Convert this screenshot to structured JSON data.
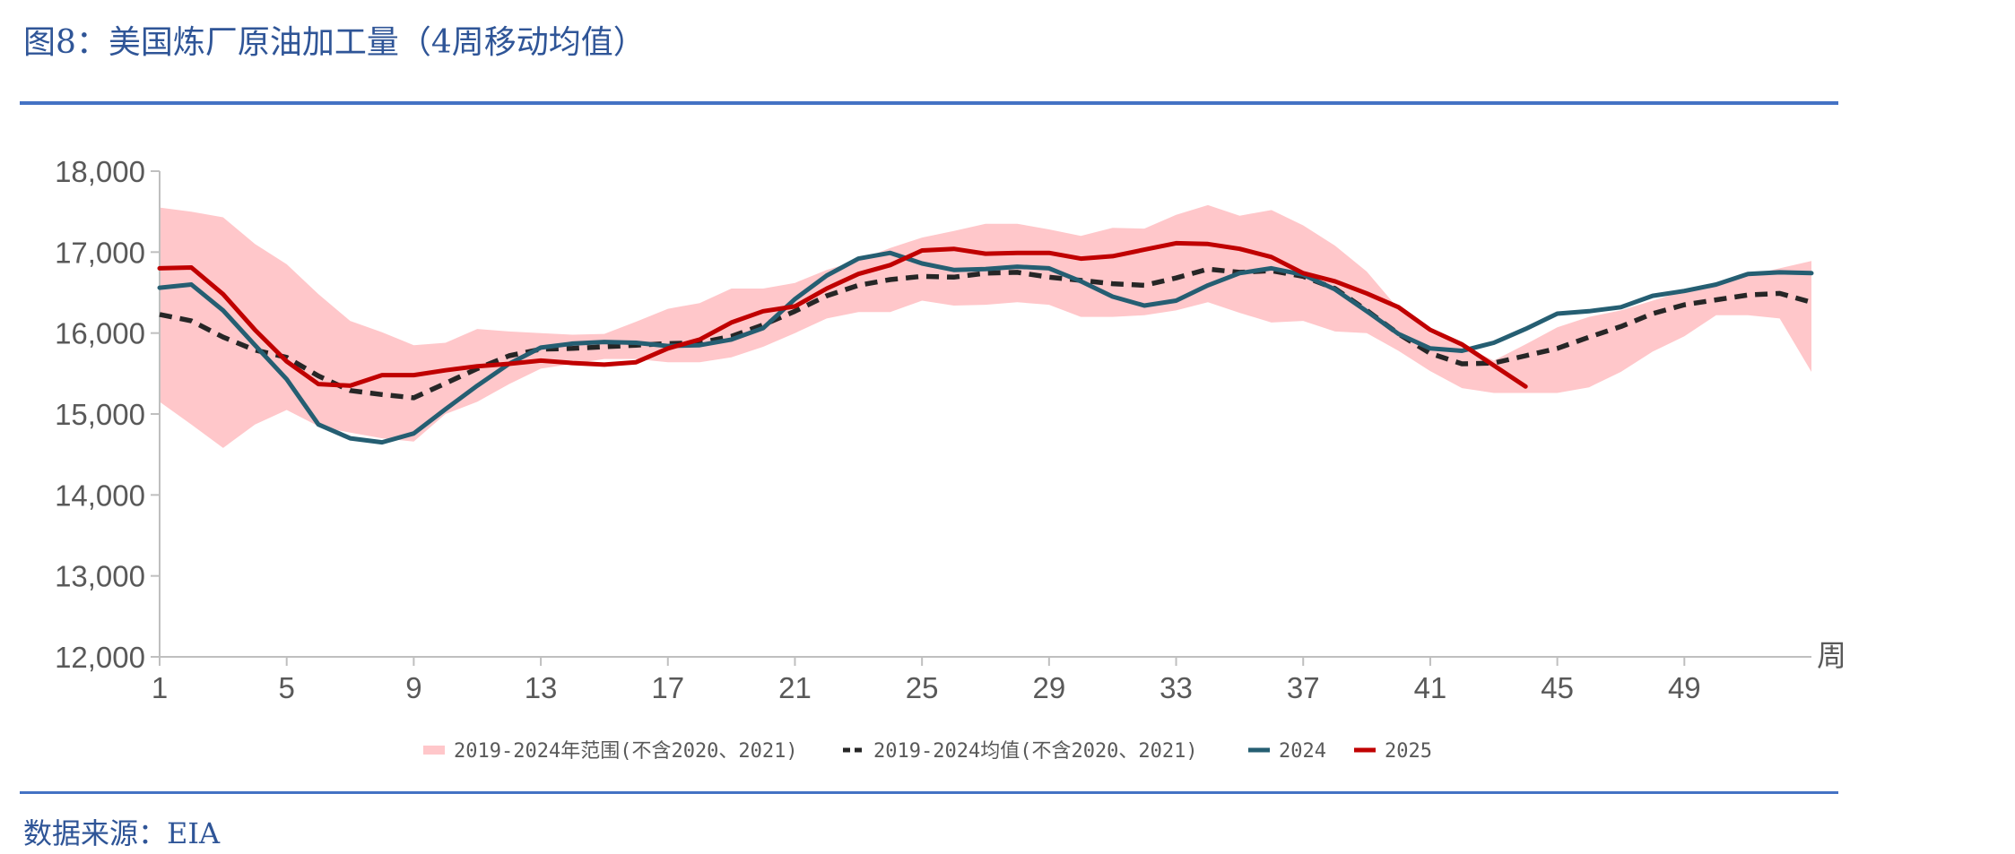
{
  "title": "图8：美国炼厂原油加工量（4周移动均值）",
  "source": "数据来源：EIA",
  "chart_data": {
    "type": "line",
    "xlabel": "周",
    "ylabel": "",
    "ylim": [
      12000,
      18000
    ],
    "xlim": [
      1,
      53
    ],
    "yticks": [
      12000,
      13000,
      14000,
      15000,
      16000,
      17000,
      18000
    ],
    "ytick_labels": [
      "12,000",
      "13,000",
      "14,000",
      "15,000",
      "16,000",
      "17,000",
      "18,000"
    ],
    "xticks": [
      1,
      5,
      9,
      13,
      17,
      21,
      25,
      29,
      33,
      37,
      41,
      45,
      49
    ],
    "xtick_labels": [
      "1",
      "5",
      "9",
      "13",
      "17",
      "21",
      "25",
      "29",
      "33",
      "37",
      "41",
      "45",
      "49"
    ],
    "grid": false,
    "legend_position": "bottom",
    "range": {
      "name": "2019-2024年范围(不含2020、2021)",
      "color": "#FFC7CA",
      "weeks": [
        1,
        2,
        3,
        4,
        5,
        6,
        7,
        8,
        9,
        10,
        11,
        12,
        13,
        14,
        15,
        16,
        17,
        18,
        19,
        20,
        21,
        22,
        23,
        24,
        25,
        26,
        27,
        28,
        29,
        30,
        31,
        32,
        33,
        34,
        35,
        36,
        37,
        38,
        39,
        40,
        41,
        42,
        43,
        44,
        45,
        46,
        47,
        48,
        49,
        50,
        51,
        52,
        53
      ],
      "upper": [
        17550,
        17500,
        17430,
        17100,
        16850,
        16480,
        16150,
        16010,
        15850,
        15880,
        16050,
        16020,
        16000,
        15980,
        15990,
        16140,
        16300,
        16370,
        16550,
        16550,
        16620,
        16780,
        16900,
        17050,
        17180,
        17260,
        17350,
        17350,
        17280,
        17200,
        17300,
        17290,
        17460,
        17580,
        17450,
        17520,
        17330,
        17080,
        16760,
        16300,
        16000,
        15850,
        15660,
        15860,
        16070,
        16200,
        16280,
        16400,
        16520,
        16620,
        16710,
        16800,
        16890
      ],
      "lower": [
        15150,
        14870,
        14580,
        14870,
        15050,
        14850,
        14770,
        14700,
        14660,
        15000,
        15150,
        15370,
        15560,
        15620,
        15680,
        15680,
        15640,
        15640,
        15700,
        15830,
        16000,
        16180,
        16260,
        16260,
        16400,
        16340,
        16350,
        16380,
        16350,
        16200,
        16200,
        16220,
        16280,
        16380,
        16250,
        16130,
        16150,
        16020,
        16000,
        15780,
        15530,
        15320,
        15260,
        15260,
        15260,
        15330,
        15520,
        15770,
        15960,
        16220,
        16220,
        16180,
        15520
      ]
    },
    "series": [
      {
        "name": "2019-2024均值(不含2020、2021)",
        "color": "#262626",
        "dash": true,
        "weeks": [
          1,
          2,
          3,
          4,
          5,
          6,
          7,
          8,
          9,
          10,
          11,
          12,
          13,
          14,
          15,
          16,
          17,
          18,
          19,
          20,
          21,
          22,
          23,
          24,
          25,
          26,
          27,
          28,
          29,
          30,
          31,
          32,
          33,
          34,
          35,
          36,
          37,
          38,
          39,
          40,
          41,
          42,
          43,
          44,
          45,
          46,
          47,
          48,
          49,
          50,
          51,
          52,
          53
        ],
        "values": [
          16230,
          16150,
          15950,
          15790,
          15700,
          15470,
          15290,
          15240,
          15200,
          15380,
          15560,
          15720,
          15800,
          15810,
          15830,
          15850,
          15870,
          15880,
          15960,
          16100,
          16270,
          16460,
          16590,
          16660,
          16700,
          16690,
          16740,
          16750,
          16690,
          16650,
          16610,
          16590,
          16680,
          16790,
          16750,
          16770,
          16700,
          16550,
          16280,
          15990,
          15750,
          15620,
          15630,
          15720,
          15810,
          15950,
          16080,
          16240,
          16350,
          16410,
          16470,
          16490,
          16380
        ]
      },
      {
        "name": "2024",
        "color": "#255E72",
        "dash": false,
        "weeks": [
          1,
          2,
          3,
          4,
          5,
          6,
          7,
          8,
          9,
          10,
          11,
          12,
          13,
          14,
          15,
          16,
          17,
          18,
          19,
          20,
          21,
          22,
          23,
          24,
          25,
          26,
          27,
          28,
          29,
          30,
          31,
          32,
          33,
          34,
          35,
          36,
          37,
          38,
          39,
          40,
          41,
          42,
          43,
          44,
          45,
          46,
          47,
          48,
          49,
          50,
          51,
          52,
          53
        ],
        "values": [
          16560,
          16600,
          16280,
          15850,
          15430,
          14870,
          14700,
          14650,
          14760,
          15060,
          15350,
          15620,
          15820,
          15870,
          15890,
          15880,
          15840,
          15850,
          15920,
          16060,
          16420,
          16710,
          16920,
          16990,
          16860,
          16780,
          16790,
          16820,
          16800,
          16640,
          16450,
          16340,
          16400,
          16590,
          16740,
          16800,
          16720,
          16540,
          16270,
          15990,
          15810,
          15780,
          15880,
          16050,
          16240,
          16270,
          16320,
          16460,
          16520,
          16600,
          16730,
          16750,
          16740
        ]
      },
      {
        "name": "2025",
        "color": "#C00000",
        "dash": false,
        "weeks": [
          1,
          2,
          3,
          4,
          5,
          6,
          7,
          8,
          9,
          10,
          11,
          12,
          13,
          14,
          15,
          16,
          17,
          18,
          19,
          20,
          21,
          22,
          23,
          24,
          25,
          26,
          27,
          28,
          29,
          30,
          31,
          32,
          33,
          34,
          35,
          36,
          37,
          38,
          39,
          40,
          41,
          42,
          43,
          44
        ],
        "values": [
          16800,
          16810,
          16480,
          16040,
          15650,
          15370,
          15350,
          15480,
          15480,
          15540,
          15590,
          15620,
          15660,
          15630,
          15610,
          15640,
          15810,
          15920,
          16130,
          16270,
          16330,
          16550,
          16730,
          16840,
          17020,
          17040,
          16980,
          16990,
          16990,
          16920,
          16950,
          17030,
          17110,
          17100,
          17040,
          16940,
          16740,
          16640,
          16490,
          16320,
          16040,
          15860,
          15600,
          15340
        ]
      }
    ]
  }
}
